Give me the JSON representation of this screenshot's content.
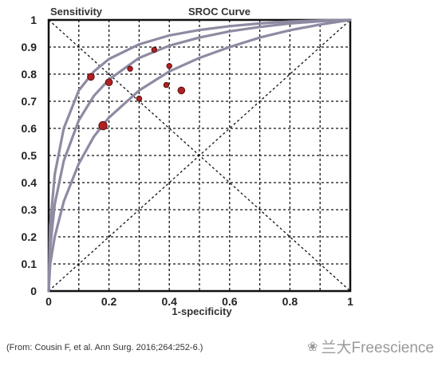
{
  "citation": "(From: Cousin F, et al. Ann Surg. 2016;264:252-6.)",
  "brand": {
    "text": "兰大Freescience",
    "icon": "wechat-icon"
  },
  "chart_data": {
    "type": "scatter",
    "title": "SROC Curve",
    "ylabel": "Sensitivity",
    "xlabel": "1-specificity",
    "xlim": [
      0,
      1
    ],
    "ylim": [
      0,
      1
    ],
    "x_ticks": [
      "0",
      "0.2",
      "0.4",
      "0.6",
      "0.8",
      "1"
    ],
    "y_ticks": [
      "0",
      "0.1",
      "0.2",
      "0.3",
      "0.4",
      "0.5",
      "0.6",
      "0.7",
      "0.8",
      "0.9",
      "1"
    ],
    "grid": true,
    "points": [
      {
        "x": 0.14,
        "y": 0.79,
        "size": "medium"
      },
      {
        "x": 0.2,
        "y": 0.77,
        "size": "medium"
      },
      {
        "x": 0.27,
        "y": 0.82,
        "size": "small"
      },
      {
        "x": 0.35,
        "y": 0.89,
        "size": "small"
      },
      {
        "x": 0.4,
        "y": 0.83,
        "size": "small"
      },
      {
        "x": 0.39,
        "y": 0.76,
        "size": "small"
      },
      {
        "x": 0.44,
        "y": 0.74,
        "size": "medium"
      },
      {
        "x": 0.3,
        "y": 0.71,
        "size": "small"
      },
      {
        "x": 0.18,
        "y": 0.61,
        "size": "large"
      }
    ],
    "curves": [
      {
        "role": "upper",
        "x": [
          0,
          0.005,
          0.02,
          0.05,
          0.1,
          0.15,
          0.2,
          0.3,
          0.4,
          0.5,
          0.6,
          0.7,
          0.8,
          0.9,
          1
        ],
        "y": [
          0,
          0.24,
          0.43,
          0.6,
          0.74,
          0.81,
          0.856,
          0.91,
          0.943,
          0.963,
          0.977,
          0.987,
          0.994,
          0.998,
          1
        ]
      },
      {
        "role": "summary",
        "x": [
          0,
          0.005,
          0.02,
          0.05,
          0.1,
          0.15,
          0.2,
          0.3,
          0.4,
          0.5,
          0.6,
          0.7,
          0.8,
          0.9,
          1
        ],
        "y": [
          0,
          0.16,
          0.32,
          0.48,
          0.63,
          0.72,
          0.78,
          0.86,
          0.905,
          0.935,
          0.958,
          0.974,
          0.987,
          0.995,
          1
        ]
      },
      {
        "role": "lower",
        "x": [
          0,
          0.005,
          0.02,
          0.05,
          0.1,
          0.15,
          0.2,
          0.3,
          0.4,
          0.5,
          0.6,
          0.7,
          0.8,
          0.9,
          1
        ],
        "y": [
          0,
          0.1,
          0.2,
          0.33,
          0.47,
          0.57,
          0.64,
          0.74,
          0.81,
          0.86,
          0.9,
          0.935,
          0.962,
          0.983,
          1
        ]
      }
    ],
    "reference_lines": [
      "diagonal",
      "anti-diagonal"
    ],
    "colors": {
      "curve": "#8f8aa2",
      "point": "#b02222",
      "point_outline": "#5a0d0d",
      "grid": "#111111",
      "axis": "#111111"
    }
  }
}
